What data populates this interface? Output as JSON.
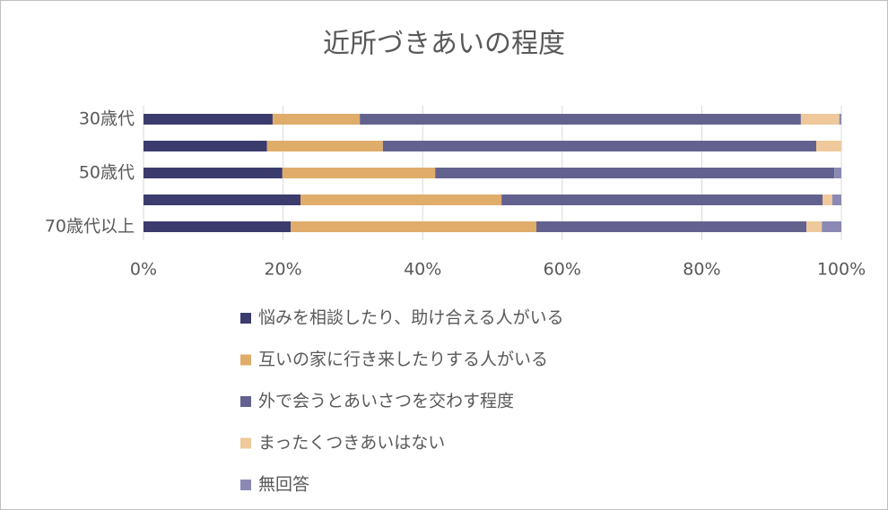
{
  "chart_data": {
    "type": "stacked_bar_horizontal",
    "title": "近所づきあいの程度",
    "categories": [
      "30歳代",
      null,
      "50歳代",
      null,
      "70歳代以上"
    ],
    "series": [
      {
        "name": "悩みを相談したり、助け合える人がいる",
        "color": "#3b3b6e",
        "values": [
          18.5,
          17.7,
          19.9,
          22.5,
          21.1
        ]
      },
      {
        "name": "互いの家に行き来したりする人がいる",
        "color": "#e0ac6a",
        "values": [
          12.5,
          16.6,
          21.9,
          28.8,
          35.2
        ]
      },
      {
        "name": "外で会うとあいさつを交わす程度",
        "color": "#63628f",
        "values": [
          63.2,
          62.1,
          57.2,
          46.0,
          38.7
        ]
      },
      {
        "name": "まったくつきあいはない",
        "color": "#efc99b",
        "values": [
          5.5,
          3.6,
          0,
          1.4,
          2.2
        ]
      },
      {
        "name": "無回答",
        "color": "#8b89b4",
        "values": [
          0.3,
          0,
          1.0,
          1.3,
          2.8
        ]
      }
    ],
    "xlim": [
      0,
      100
    ],
    "xticks": [
      {
        "value": 0,
        "label": "0%"
      },
      {
        "value": 20,
        "label": "20%"
      },
      {
        "value": 40,
        "label": "40%"
      },
      {
        "value": 60,
        "label": "60%"
      },
      {
        "value": 80,
        "label": "80%"
      },
      {
        "value": 100,
        "label": "100%"
      }
    ],
    "grid": true,
    "legend": "bottom"
  }
}
